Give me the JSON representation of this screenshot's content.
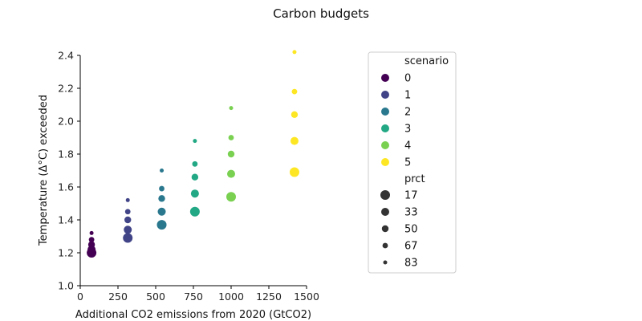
{
  "chart_data": {
    "type": "scatter",
    "title": "Carbon budgets",
    "xlabel": "Additional CO2 emissions from 2020 (GtCO2)",
    "ylabel": "Temperature (Δ°C) exceeded",
    "xlim": [
      0,
      1500
    ],
    "ylim": [
      1.0,
      2.4
    ],
    "xticks": [
      0,
      250,
      500,
      750,
      1000,
      1250,
      1500
    ],
    "yticks": [
      1.0,
      1.2,
      1.4,
      1.6,
      1.8,
      2.0,
      2.2,
      2.4
    ],
    "grid": false,
    "legend_position": "right",
    "hue_legend": {
      "title": "scenario",
      "entries": [
        "0",
        "1",
        "2",
        "3",
        "4",
        "5"
      ]
    },
    "size_legend": {
      "title": "prct",
      "entries": [
        "17",
        "33",
        "50",
        "67",
        "83"
      ]
    },
    "colors": [
      "#440154",
      "#414487",
      "#2a788e",
      "#22a884",
      "#7ad151",
      "#fde725"
    ],
    "series": [
      {
        "scenario": "0",
        "x": [
          75,
          75,
          75,
          75,
          75
        ],
        "y": [
          1.2,
          1.22,
          1.25,
          1.28,
          1.32
        ],
        "prct": [
          17,
          33,
          50,
          67,
          83
        ]
      },
      {
        "scenario": "1",
        "x": [
          315,
          315,
          315,
          315,
          315
        ],
        "y": [
          1.29,
          1.34,
          1.4,
          1.45,
          1.52
        ],
        "prct": [
          17,
          33,
          50,
          67,
          83
        ]
      },
      {
        "scenario": "2",
        "x": [
          540,
          540,
          540,
          540,
          540
        ],
        "y": [
          1.37,
          1.45,
          1.53,
          1.59,
          1.7
        ],
        "prct": [
          17,
          33,
          50,
          67,
          83
        ]
      },
      {
        "scenario": "3",
        "x": [
          760,
          760,
          760,
          760,
          760
        ],
        "y": [
          1.45,
          1.56,
          1.66,
          1.74,
          1.88
        ],
        "prct": [
          17,
          33,
          50,
          67,
          83
        ]
      },
      {
        "scenario": "4",
        "x": [
          1000,
          1000,
          1000,
          1000,
          1000
        ],
        "y": [
          1.54,
          1.68,
          1.8,
          1.9,
          2.08
        ],
        "prct": [
          17,
          33,
          50,
          67,
          83
        ]
      },
      {
        "scenario": "5",
        "x": [
          1420,
          1420,
          1420,
          1420,
          1420
        ],
        "y": [
          1.69,
          1.88,
          2.04,
          2.18,
          2.42
        ],
        "prct": [
          17,
          33,
          50,
          67,
          83
        ]
      }
    ]
  }
}
